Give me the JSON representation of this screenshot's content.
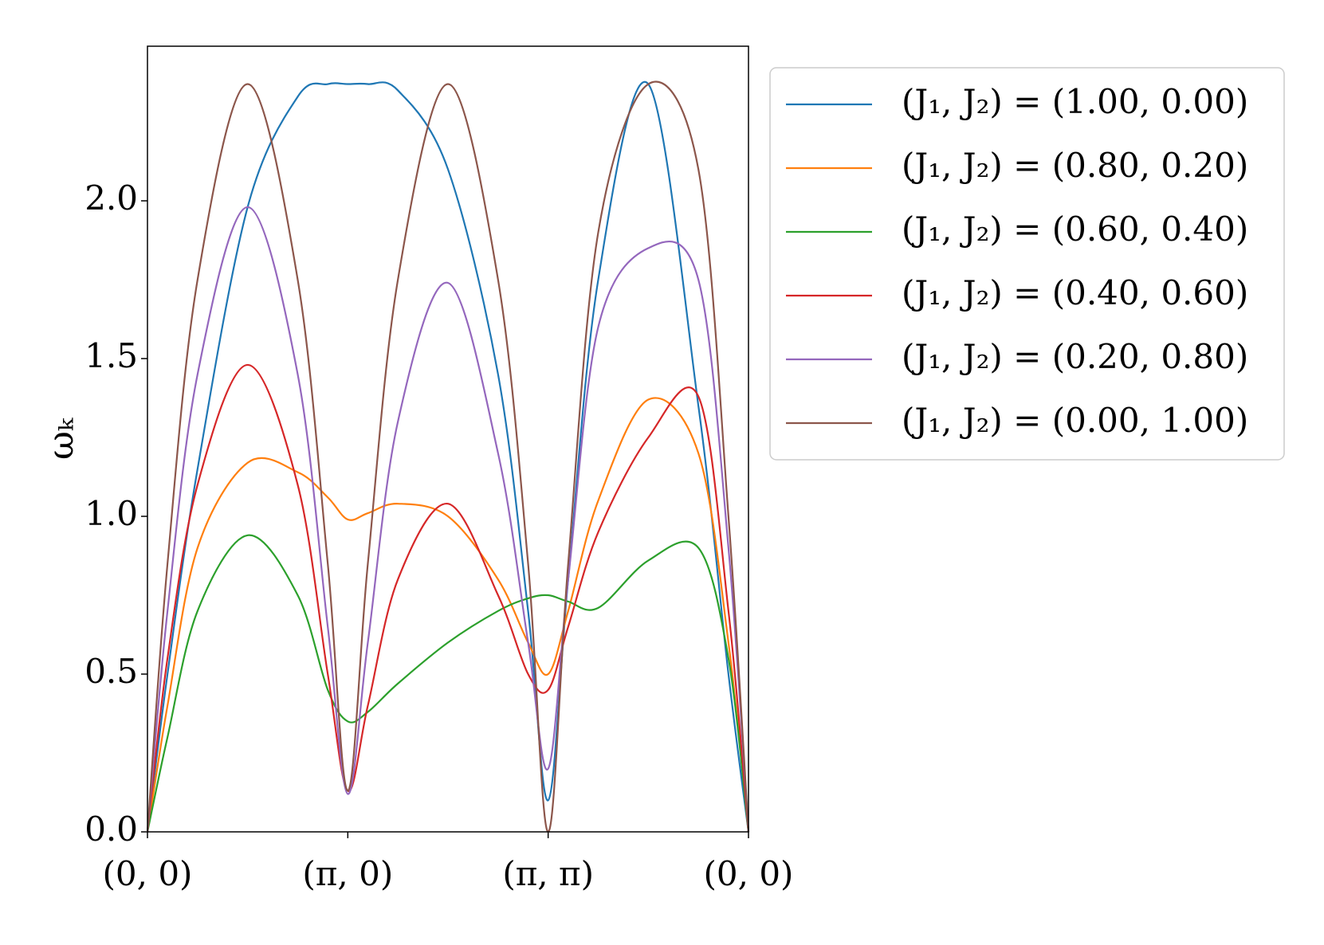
{
  "chart_data": {
    "type": "line",
    "y_label": "ωₖ",
    "x": [
      0,
      0.1,
      0.25,
      0.5,
      0.75,
      0.9,
      1,
      1.1,
      1.25,
      1.5,
      1.75,
      1.9,
      2,
      2.1,
      2.25,
      2.5,
      2.75,
      2.9,
      3
    ],
    "xlim": [
      0,
      3
    ],
    "xticks": [
      {
        "value": 0,
        "label": "(0, 0)"
      },
      {
        "value": 1,
        "label": "(π, 0)"
      },
      {
        "value": 2,
        "label": "(π, π)"
      },
      {
        "value": 3,
        "label": "(0, 0)"
      }
    ],
    "ylim": [
      0,
      2.49
    ],
    "yticks": [
      {
        "value": 0,
        "label": "0.0"
      },
      {
        "value": 0.5,
        "label": "0.5"
      },
      {
        "value": 1,
        "label": "1.0"
      },
      {
        "value": 1.5,
        "label": "1.5"
      },
      {
        "value": 2,
        "label": "2.0"
      }
    ],
    "legend_position": "outside-right",
    "series": [
      {
        "name": "(J₁, J₂) = (1.00, 0.00)",
        "color": "#1f77b4",
        "values": [
          0,
          0.5,
          1.15,
          1.98,
          2.33,
          2.37,
          2.37,
          2.37,
          2.35,
          2.1,
          1.45,
          0.7,
          0.1,
          0.8,
          1.75,
          2.37,
          1.35,
          0.5,
          0
        ]
      },
      {
        "name": "(J₁, J₂) = (0.80, 0.20)",
        "color": "#ff7f0e",
        "values": [
          0,
          0.4,
          0.9,
          1.17,
          1.14,
          1.06,
          0.99,
          1.01,
          1.04,
          1.0,
          0.8,
          0.6,
          0.5,
          0.7,
          1.05,
          1.37,
          1.2,
          0.6,
          0
        ]
      },
      {
        "name": "(J₁, J₂) = (0.60, 0.40)",
        "color": "#2ca02c",
        "values": [
          0,
          0.3,
          0.7,
          0.94,
          0.75,
          0.45,
          0.35,
          0.38,
          0.47,
          0.6,
          0.7,
          0.74,
          0.75,
          0.73,
          0.71,
          0.86,
          0.9,
          0.55,
          0
        ]
      },
      {
        "name": "(J₁, J₂) = (0.40, 0.60)",
        "color": "#d62728",
        "values": [
          0,
          0.55,
          1.1,
          1.48,
          1.1,
          0.5,
          0.13,
          0.4,
          0.8,
          1.04,
          0.75,
          0.5,
          0.45,
          0.65,
          0.95,
          1.25,
          1.38,
          0.7,
          0
        ]
      },
      {
        "name": "(J₁, J₂) = (0.20, 0.80)",
        "color": "#9467bd",
        "values": [
          0,
          0.7,
          1.45,
          1.98,
          1.45,
          0.65,
          0.12,
          0.6,
          1.3,
          1.74,
          1.2,
          0.6,
          0.2,
          0.8,
          1.6,
          1.85,
          1.75,
          0.9,
          0
        ]
      },
      {
        "name": "(J₁, J₂) = (0.00, 1.00)",
        "color": "#8c564b",
        "values": [
          0,
          0.85,
          1.75,
          2.37,
          1.75,
          0.85,
          0.13,
          0.85,
          1.75,
          2.37,
          1.75,
          0.85,
          0,
          0.85,
          1.9,
          2.37,
          2.1,
          1.0,
          0
        ]
      }
    ]
  }
}
